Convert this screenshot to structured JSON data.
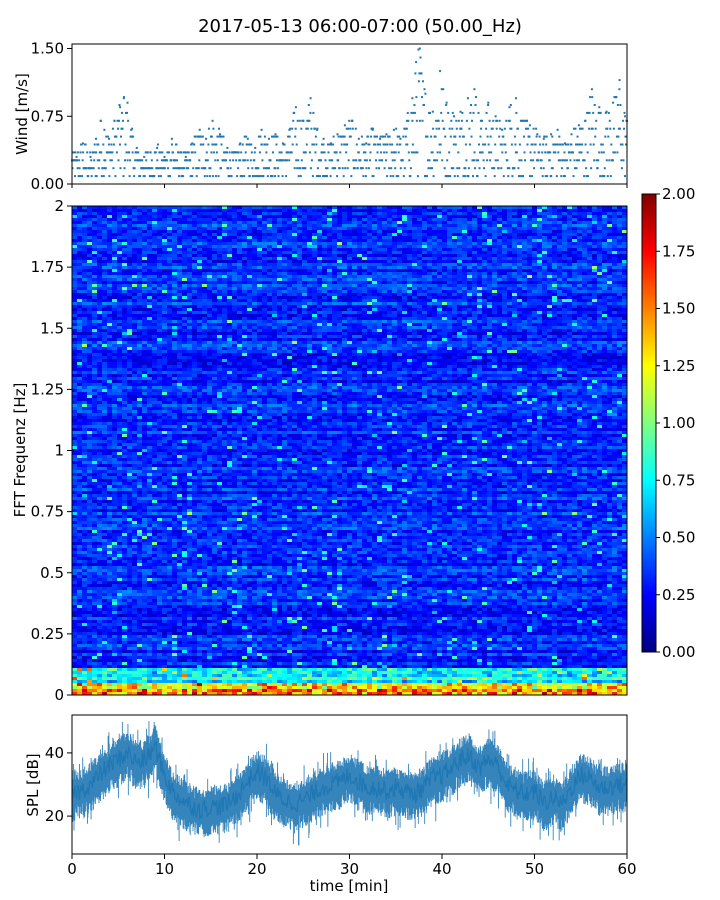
{
  "title": "2017-05-13 06:00-07:00 (50.00_Hz)",
  "chart_data": [
    {
      "id": "wind",
      "type": "scatter",
      "ylabel": "Wind [m/s]",
      "xlim": [
        0,
        60
      ],
      "ylim": [
        0,
        1.55
      ],
      "yticks": [
        "0.00",
        "0.75",
        "1.50"
      ],
      "ytick_values": [
        0,
        0.75,
        1.5
      ],
      "xticks": [
        0,
        10,
        20,
        30,
        40,
        50,
        60
      ],
      "marker_color": "#1f77b4",
      "series": [
        {
          "x": [
            0.5,
            1.2,
            2.0,
            2.6,
            3.1,
            3.5,
            4.0,
            4.6,
            5.2,
            5.6,
            6.0,
            6.4,
            7.0,
            7.8,
            8.5,
            9.2,
            10.0,
            10.8,
            11.5,
            12.3,
            13.0,
            13.8,
            14.5,
            15.2,
            16.0,
            16.8,
            17.5,
            18.2,
            19.0,
            19.8,
            20.5,
            21.3,
            22.0,
            22.8,
            23.5,
            24.2,
            25.0,
            25.8,
            26.5,
            27.2,
            28.0,
            28.7,
            29.5,
            30.3,
            31.0,
            31.8,
            32.5,
            33.3,
            34.0,
            34.8,
            35.5,
            36.2,
            36.8,
            37.2,
            37.6,
            38.2,
            39.0,
            39.8,
            40.5,
            41.3,
            42.0,
            42.8,
            43.5,
            44.2,
            45.0,
            45.8,
            46.5,
            47.3,
            48.0,
            48.8,
            49.5,
            50.3,
            51.0,
            51.8,
            52.5,
            53.3,
            54.0,
            54.8,
            55.5,
            56.2,
            57.0,
            57.8,
            58.5,
            59.2,
            59.8
          ],
          "y": [
            0.3,
            0.45,
            0.3,
            0.5,
            0.7,
            0.6,
            0.5,
            0.7,
            0.85,
            0.95,
            0.9,
            0.6,
            0.4,
            0.3,
            0.35,
            0.4,
            0.3,
            0.5,
            0.35,
            0.3,
            0.45,
            0.6,
            0.5,
            0.7,
            0.55,
            0.4,
            0.35,
            0.45,
            0.5,
            0.4,
            0.6,
            0.5,
            0.55,
            0.45,
            0.6,
            0.85,
            0.7,
            0.95,
            0.6,
            0.5,
            0.45,
            0.55,
            0.65,
            0.7,
            0.5,
            0.45,
            0.6,
            0.5,
            0.55,
            0.6,
            0.5,
            0.7,
            0.95,
            1.35,
            1.5,
            1.0,
            0.8,
            1.25,
            0.9,
            0.75,
            0.8,
            0.95,
            1.05,
            0.7,
            0.9,
            0.75,
            0.6,
            0.85,
            0.95,
            0.7,
            0.65,
            0.55,
            0.5,
            0.55,
            0.6,
            0.45,
            0.55,
            0.65,
            0.7,
            1.05,
            0.85,
            0.8,
            0.9,
            1.15,
            0.75
          ]
        }
      ]
    },
    {
      "id": "spectrogram",
      "type": "heatmap",
      "ylabel": "FFT Frequenz [Hz]",
      "xlim": [
        0,
        60
      ],
      "ylim": [
        0,
        2
      ],
      "yticks": [
        "0",
        "0.25",
        "0.5",
        "0.75",
        "1",
        "1.25",
        "1.5",
        "1.75",
        "2"
      ],
      "ytick_values": [
        0,
        0.25,
        0.5,
        0.75,
        1,
        1.25,
        1.5,
        1.75,
        2
      ],
      "colormap": "jet",
      "clim": [
        0,
        2
      ],
      "colorbar_ticks": [
        "0.00",
        "0.25",
        "0.50",
        "0.75",
        "1.00",
        "1.25",
        "1.50",
        "1.75",
        "2.00"
      ],
      "colorbar_tick_values": [
        0,
        0.25,
        0.5,
        0.75,
        1,
        1.25,
        1.5,
        1.75,
        2
      ],
      "typical_level": 0.3,
      "low_frequency_level": 1.6
    },
    {
      "id": "spl",
      "type": "line",
      "ylabel": "SPL [dB]",
      "xlabel": "time [min]",
      "xlim": [
        0,
        60
      ],
      "ylim": [
        8,
        52
      ],
      "yticks": [
        "20",
        "40"
      ],
      "ytick_values": [
        20,
        40
      ],
      "xticks": [
        "0",
        "10",
        "20",
        "30",
        "40",
        "50",
        "60"
      ],
      "xtick_values": [
        0,
        10,
        20,
        30,
        40,
        50,
        60
      ],
      "line_color": "#1f77b4",
      "series": [
        {
          "x": [
            0,
            1,
            2,
            3,
            4,
            5,
            6,
            7,
            8,
            9,
            10,
            11,
            12,
            13,
            14,
            15,
            16,
            17,
            18,
            19,
            20,
            21,
            22,
            23,
            24,
            25,
            26,
            27,
            28,
            29,
            30,
            31,
            32,
            33,
            34,
            35,
            36,
            37,
            38,
            39,
            40,
            41,
            42,
            43,
            44,
            45,
            46,
            47,
            48,
            49,
            50,
            51,
            52,
            53,
            54,
            55,
            56,
            57,
            58,
            59,
            60
          ],
          "y": [
            27,
            28,
            30,
            33,
            36,
            38,
            40,
            37,
            38,
            42,
            33,
            27,
            25,
            23,
            22,
            23,
            23,
            24,
            27,
            31,
            34,
            32,
            27,
            25,
            24,
            25,
            27,
            29,
            30,
            31,
            33,
            31,
            29,
            29,
            28,
            29,
            28,
            27,
            29,
            32,
            33,
            35,
            38,
            39,
            35,
            38,
            36,
            30,
            28,
            27,
            28,
            24,
            26,
            24,
            29,
            33,
            32,
            29,
            29,
            30,
            30
          ]
        }
      ]
    }
  ]
}
